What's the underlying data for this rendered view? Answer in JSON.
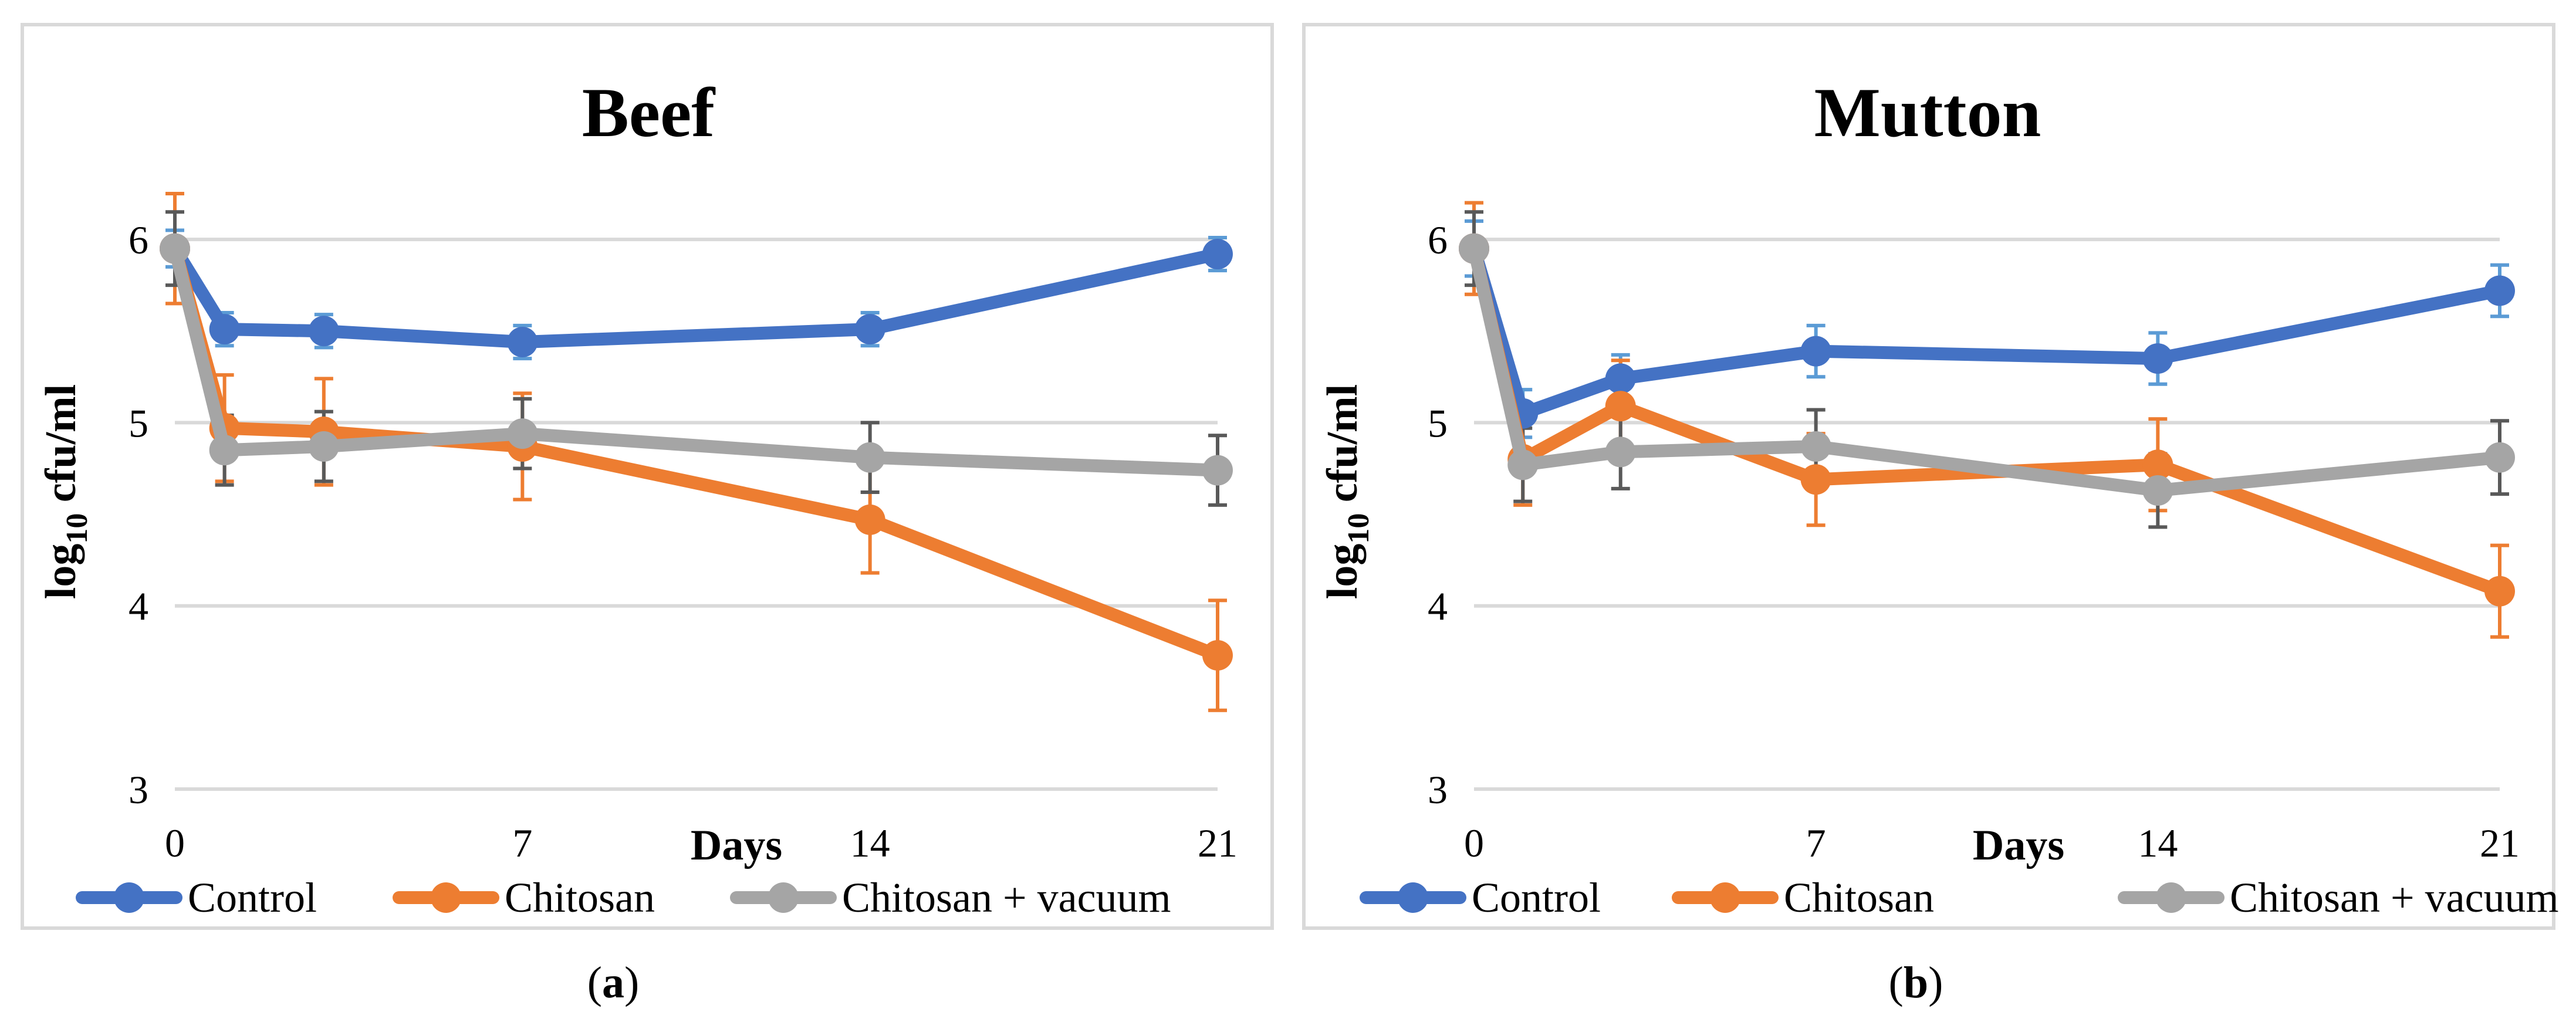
{
  "colors": {
    "control": "#4472C4",
    "chitosan": "#ED7D31",
    "vacuum": "#A5A5A5",
    "control_err": "#5B9BD5",
    "chitosan_err": "#ED7D31",
    "vacuum_err": "#595959"
  },
  "chart_data": [
    {
      "type": "line",
      "title": "Beef",
      "xlabel": "Days",
      "ylabel_main": "log",
      "ylabel_sub": "10",
      "ylabel_rest": " cfu/ml",
      "ylim": [
        3,
        6.25
      ],
      "xlim": [
        0,
        21
      ],
      "x_ticks": [
        "0",
        "7",
        "14",
        "21"
      ],
      "y_ticks": [
        "3",
        "4",
        "5",
        "6"
      ],
      "x": [
        0,
        1,
        3,
        7,
        14,
        21
      ],
      "caption_open": "(",
      "caption_letter": "a",
      "caption_close": ")",
      "series": [
        {
          "name": "Control",
          "key": "control",
          "values": [
            5.95,
            5.51,
            5.5,
            5.44,
            5.51,
            5.92
          ],
          "errors": [
            0.1,
            0.09,
            0.09,
            0.09,
            0.09,
            0.09
          ]
        },
        {
          "name": "Chitosan",
          "key": "chitosan",
          "values": [
            5.95,
            4.97,
            4.95,
            4.87,
            4.47,
            3.73
          ],
          "errors": [
            0.3,
            0.29,
            0.29,
            0.29,
            0.29,
            0.3
          ]
        },
        {
          "name": "Chitosan + vacuum",
          "key": "vacuum",
          "values": [
            5.95,
            4.85,
            4.87,
            4.94,
            4.81,
            4.74
          ],
          "errors": [
            0.2,
            0.19,
            0.19,
            0.19,
            0.19,
            0.19
          ]
        }
      ]
    },
    {
      "type": "line",
      "title": "Mutton",
      "xlabel": "Days",
      "ylabel_main": "log",
      "ylabel_sub": "10",
      "ylabel_rest": " cfu/ml",
      "ylim": [
        3,
        6.25
      ],
      "xlim": [
        0,
        21
      ],
      "x_ticks": [
        "0",
        "7",
        "14",
        "21"
      ],
      "y_ticks": [
        "3",
        "4",
        "5",
        "6"
      ],
      "x": [
        0,
        1,
        3,
        7,
        14,
        21
      ],
      "caption_open": "(",
      "caption_letter": "b",
      "caption_close": ")",
      "series": [
        {
          "name": "Control",
          "key": "control",
          "values": [
            5.95,
            5.05,
            5.24,
            5.39,
            5.35,
            5.72
          ],
          "errors": [
            0.15,
            0.13,
            0.13,
            0.14,
            0.14,
            0.14
          ]
        },
        {
          "name": "Chitosan",
          "key": "chitosan",
          "values": [
            5.95,
            4.8,
            5.09,
            4.69,
            4.77,
            4.08
          ],
          "errors": [
            0.25,
            0.25,
            0.25,
            0.25,
            0.25,
            0.25
          ]
        },
        {
          "name": "Chitosan + vacuum",
          "key": "vacuum",
          "values": [
            5.95,
            4.77,
            4.84,
            4.87,
            4.63,
            4.81
          ],
          "errors": [
            0.2,
            0.2,
            0.2,
            0.2,
            0.2,
            0.2
          ]
        }
      ]
    }
  ]
}
